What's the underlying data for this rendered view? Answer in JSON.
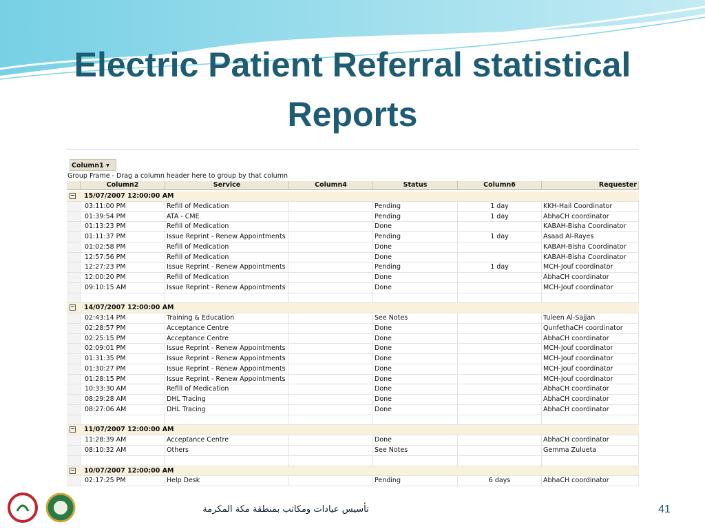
{
  "slide": {
    "title_lines": [
      "Electric Patient Referral statistical",
      "Reports"
    ],
    "footer_text": "تأسيس عيادات ومكاتب بمنطقة مكة المكرمة",
    "page_number": "41"
  },
  "grid": {
    "group_button": "Column1",
    "group_frame_text": "Group Frame - Drag a column header here to group by that column",
    "columns": [
      "Column2",
      "Service",
      "Column4",
      "Status",
      "Column6",
      "Requester"
    ],
    "groups": [
      {
        "label": "15/07/2007 12:00:00 AM",
        "rows": [
          {
            "time": "03:11:00 PM",
            "service": "Refill of Medication",
            "status": "Pending",
            "days": "1 day",
            "requester": "KKH-Hail Coordinator"
          },
          {
            "time": "01:39:54 PM",
            "service": "ATA - CME",
            "status": "Pending",
            "days": "1 day",
            "requester": "AbhaCH coordinator"
          },
          {
            "time": "01:13:23 PM",
            "service": "Refill of Medication",
            "status": "Done",
            "requester": "KABAH-Bisha Coordinator"
          },
          {
            "time": "01:11:37 PM",
            "service": "Issue Reprint - Renew Appointments",
            "status": "Pending",
            "days": "1 day",
            "requester": "Asaad Al-Rayes"
          },
          {
            "time": "01:02:58 PM",
            "service": "Refill of Medication",
            "status": "Done",
            "requester": "KABAH-Bisha Coordinator"
          },
          {
            "time": "12:57:56 PM",
            "service": "Refill of Medication",
            "status": "Done",
            "requester": "KABAH-Bisha Coordinator"
          },
          {
            "time": "12:27:23 PM",
            "service": "Issue Reprint - Renew Appointments",
            "status": "Pending",
            "days": "1 day",
            "requester": "MCH-Jouf coordinator"
          },
          {
            "time": "12:00:20 PM",
            "service": "Refill of Medication",
            "status": "Done",
            "requester": "AbhaCH coordinator"
          },
          {
            "time": "09:10:15 AM",
            "service": "Issue Reprint - Renew Appointments",
            "status": "Done",
            "requester": "MCH-Jouf coordinator"
          }
        ]
      },
      {
        "label": "14/07/2007 12:00:00 AM",
        "rows": [
          {
            "time": "02:43:14 PM",
            "service": "Training & Education",
            "status": "See Notes",
            "requester": "Tuleen Al-Sajjan"
          },
          {
            "time": "02:28:57 PM",
            "service": "Acceptance Centre",
            "status": "Done",
            "requester": "QunfethaCH coordinator"
          },
          {
            "time": "02:25:15 PM",
            "service": "Acceptance Centre",
            "status": "Done",
            "requester": "AbhaCH coordinator"
          },
          {
            "time": "02:09:01 PM",
            "service": "Issue Reprint - Renew Appointments",
            "status": "Done",
            "requester": "MCH-Jouf coordinator"
          },
          {
            "time": "01:31:35 PM",
            "service": "Issue Reprint - Renew Appointments",
            "status": "Done",
            "requester": "MCH-Jouf coordinator"
          },
          {
            "time": "01:30:27 PM",
            "service": "Issue Reprint - Renew Appointments",
            "status": "Done",
            "requester": "MCH-Jouf coordinator"
          },
          {
            "time": "01:28:15 PM",
            "service": "Issue Reprint - Renew Appointments",
            "status": "Done",
            "requester": "MCH-Jouf coordinator"
          },
          {
            "time": "10:33:30 AM",
            "service": "Refill of Medication",
            "status": "Done",
            "requester": "AbhaCH coordinator"
          },
          {
            "time": "08:29:28 AM",
            "service": "DHL Tracing",
            "status": "Done",
            "requester": "AbhaCH coordinator"
          },
          {
            "time": "08:27:06 AM",
            "service": "DHL Tracing",
            "status": "Done",
            "requester": "AbhaCH coordinator"
          }
        ]
      },
      {
        "label": "11/07/2007 12:00:00 AM",
        "rows": [
          {
            "time": "11:28:39 AM",
            "service": "Acceptance Centre",
            "status": "Done",
            "requester": "AbhaCH coordinator"
          },
          {
            "time": "08:10:32 AM",
            "service": "Others",
            "status": "See Notes",
            "requester": "Gemma Zulueta"
          }
        ]
      },
      {
        "label": "10/07/2007 12:00:00 AM",
        "rows": [
          {
            "time": "02:17:25 PM",
            "service": "Help Desk",
            "status": "Pending",
            "days": "6 days",
            "requester": "AbhaCH coordinator"
          }
        ]
      }
    ]
  }
}
